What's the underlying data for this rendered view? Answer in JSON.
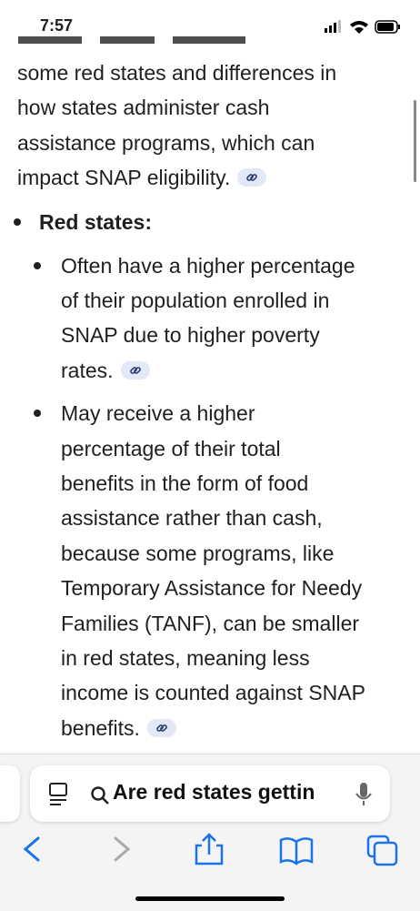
{
  "status": {
    "time": "7:57"
  },
  "content": {
    "paragraph": [
      "some red states and differences in",
      "how states administer cash",
      "assistance programs, which can",
      "impact SNAP eligibility."
    ],
    "bullet": "Red states:",
    "sub_bullets": [
      [
        "Often have a higher percentage",
        "of their population enrolled in",
        "SNAP due to higher poverty",
        "rates."
      ],
      [
        "May receive a higher",
        "percentage of their total",
        "benefits in the form of food",
        "assistance rather than cash,",
        "because some programs, like",
        "Temporary Assistance for Needy",
        "Families (TANF), can be smaller",
        "in red states, meaning less",
        "income is counted against SNAP",
        "benefits."
      ]
    ]
  },
  "search": {
    "query": "Are red states gettin"
  }
}
